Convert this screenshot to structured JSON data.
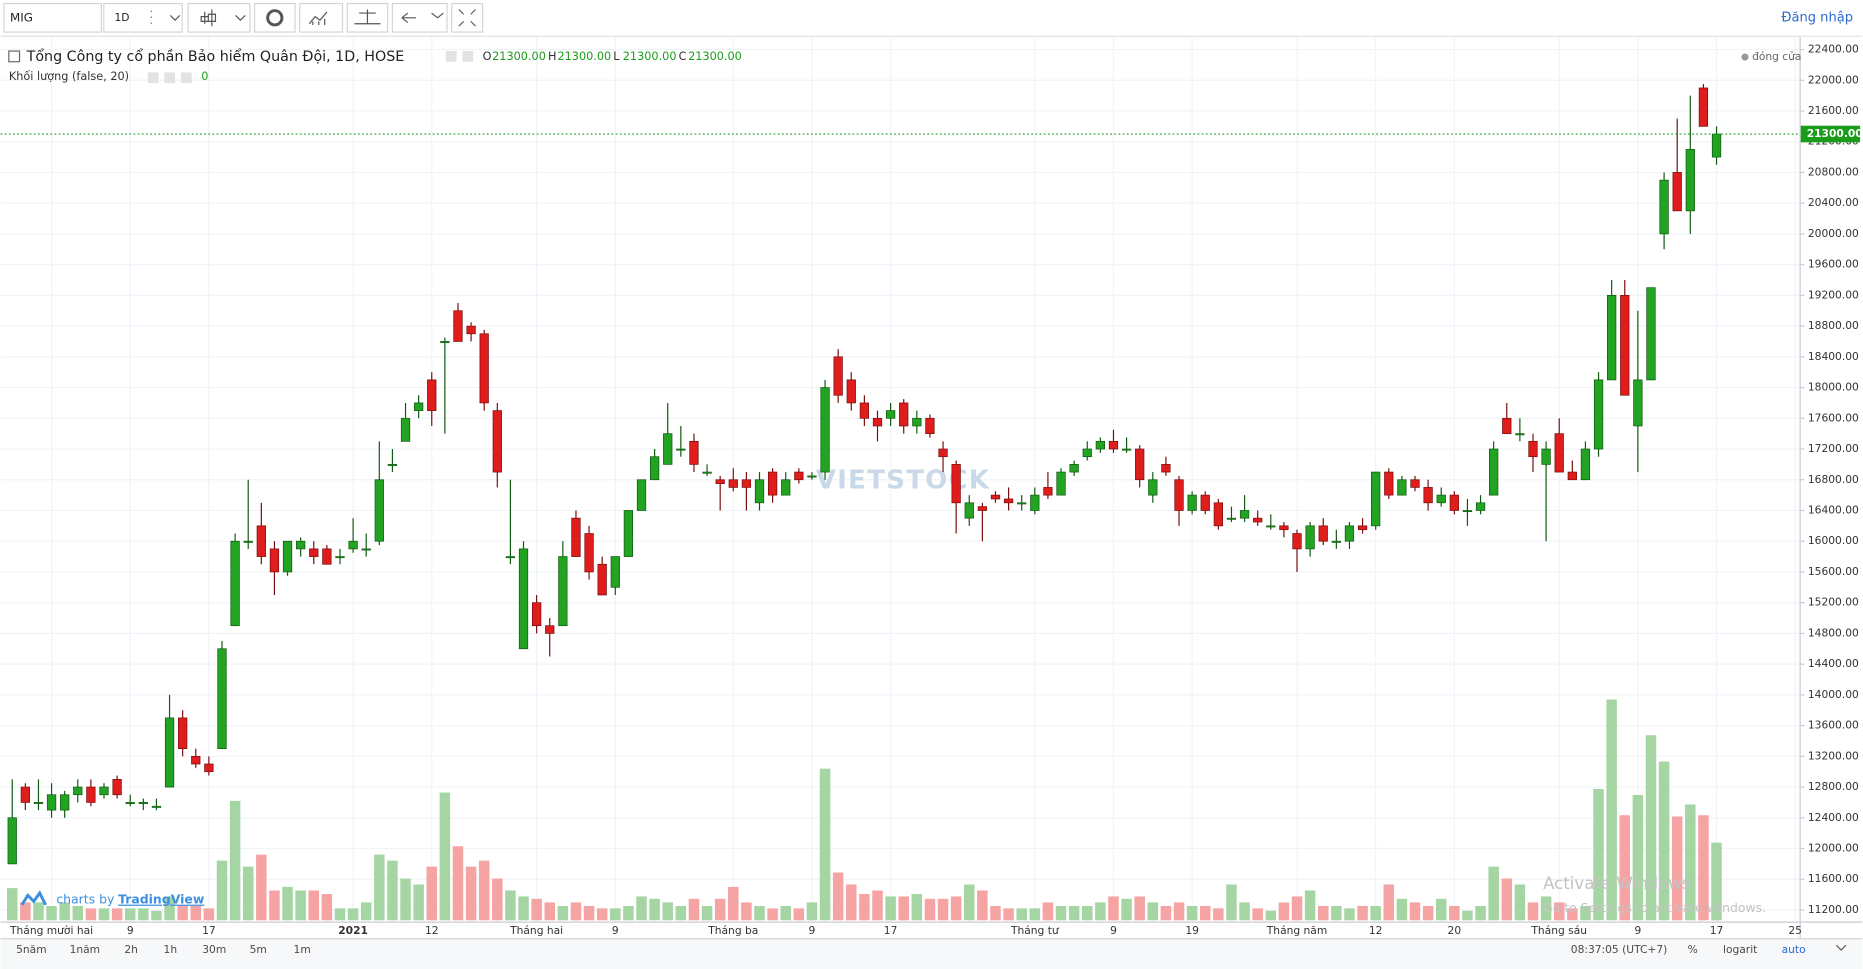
{
  "toolbar": {
    "symbol": "MIG",
    "interval": "1D",
    "login": "Đăng nhập"
  },
  "legend": {
    "title": "Tổng Công ty cổ phần Bảo hiểm Quân Đội, 1D, HOSE",
    "ohlc": [
      {
        "label": "O",
        "value": "21300.00"
      },
      {
        "label": "H",
        "value": "21300.00"
      },
      {
        "label": "L",
        "value": "21300.00"
      },
      {
        "label": "C",
        "value": "21300.00"
      }
    ],
    "volume_title": "Khối lượng (false, 20)",
    "volume_value": "0",
    "status": "đóng cửa"
  },
  "watermark": "VIETSTOCK",
  "credit": {
    "prefix": "charts by",
    "brand": "TradingView"
  },
  "bottom": {
    "ranges": [
      "5năm",
      "1năm",
      "2h",
      "1h",
      "30m",
      "5m",
      "1m"
    ],
    "time": "08:37:05 (UTC+7)",
    "percent": "%",
    "log": "logarit",
    "auto": "auto"
  },
  "os_overlay": [
    "Activate Windows",
    "Go to Settings to activate Windows."
  ],
  "chart_data": {
    "type": "candlestick",
    "categories": [
      null,
      null,
      null,
      "Tháng mười hai",
      null,
      null,
      null,
      null,
      null,
      "9",
      null,
      null,
      null,
      null,
      null,
      "17",
      null,
      null,
      null,
      null,
      null,
      null,
      null,
      null,
      null,
      null,
      "2021",
      null,
      null,
      null,
      null,
      null,
      "12",
      null,
      null,
      null,
      null,
      null,
      null,
      null,
      "Tháng hai",
      null,
      null,
      null,
      null,
      null,
      "9",
      null,
      null,
      null,
      null,
      null,
      null,
      null,
      null,
      "Tháng ba",
      null,
      null,
      null,
      null,
      null,
      "9",
      null,
      null,
      null,
      null,
      null,
      "17",
      null,
      null,
      null,
      null,
      null,
      null,
      null,
      null,
      null,
      null,
      "Tháng tư",
      null,
      null,
      null,
      null,
      null,
      "9",
      null,
      null,
      null,
      null,
      null,
      "19",
      null,
      null,
      null,
      null,
      null,
      null,
      null,
      "Tháng năm",
      null,
      null,
      null,
      null,
      null,
      "12",
      null,
      null,
      null,
      null,
      null,
      "20",
      null,
      null,
      null,
      null,
      null,
      null,
      null,
      "Tháng sáu",
      null,
      null,
      null,
      null,
      null,
      "9",
      null,
      null,
      null,
      null,
      null,
      "17",
      null,
      null,
      null,
      null,
      null,
      "25"
    ],
    "candles": [
      [
        11800,
        12900,
        11800,
        12400
      ],
      [
        12800,
        12850,
        12500,
        12600
      ],
      [
        12600,
        12900,
        12500,
        12600
      ],
      [
        12500,
        12850,
        12400,
        12700
      ],
      [
        12500,
        12750,
        12400,
        12700
      ],
      [
        12700,
        12900,
        12600,
        12800
      ],
      [
        12800,
        12900,
        12550,
        12600
      ],
      [
        12700,
        12850,
        12650,
        12800
      ],
      [
        12900,
        12950,
        12650,
        12700
      ],
      [
        12600,
        12700,
        12550,
        12600
      ],
      [
        12600,
        12650,
        12500,
        12600
      ],
      [
        12550,
        12650,
        12500,
        12550
      ],
      [
        12800,
        14000,
        12800,
        13700
      ],
      [
        13700,
        13800,
        13200,
        13300
      ],
      [
        13200,
        13300,
        13050,
        13100
      ],
      [
        13100,
        13200,
        12950,
        13000
      ],
      [
        13300,
        14700,
        13300,
        14600
      ],
      [
        14900,
        16100,
        14900,
        16000
      ],
      [
        16000,
        16800,
        15900,
        16000
      ],
      [
        16200,
        16500,
        15700,
        15800
      ],
      [
        15900,
        16000,
        15300,
        15600
      ],
      [
        15600,
        16000,
        15550,
        16000
      ],
      [
        15900,
        16050,
        15800,
        16000
      ],
      [
        15900,
        16000,
        15700,
        15800
      ],
      [
        15900,
        15950,
        15700,
        15700
      ],
      [
        15800,
        15900,
        15700,
        15800
      ],
      [
        15900,
        16300,
        15850,
        16000
      ],
      [
        15900,
        16100,
        15800,
        15900
      ],
      [
        16000,
        17300,
        15950,
        16800
      ],
      [
        17000,
        17200,
        16900,
        17000
      ],
      [
        17300,
        17800,
        17300,
        17600
      ],
      [
        17700,
        17900,
        17600,
        17800
      ],
      [
        18100,
        18200,
        17500,
        17700
      ],
      [
        18600,
        18650,
        17400,
        18600
      ],
      [
        19000,
        19100,
        18600,
        18600
      ],
      [
        18800,
        18850,
        18600,
        18700
      ],
      [
        18700,
        18750,
        17700,
        17800
      ],
      [
        17700,
        17800,
        16700,
        16900
      ],
      [
        15800,
        16800,
        15700,
        15800
      ],
      [
        14600,
        16000,
        14600,
        15900
      ],
      [
        15200,
        15300,
        14800,
        14900
      ],
      [
        14900,
        15000,
        14500,
        14800
      ],
      [
        14900,
        16000,
        14900,
        15800
      ],
      [
        16300,
        16400,
        15800,
        15800
      ],
      [
        16100,
        16200,
        15500,
        15600
      ],
      [
        15700,
        15800,
        15300,
        15300
      ],
      [
        15400,
        15800,
        15300,
        15800
      ],
      [
        15800,
        16400,
        15800,
        16400
      ],
      [
        16400,
        16800,
        16400,
        16800
      ],
      [
        16800,
        17200,
        16800,
        17100
      ],
      [
        17000,
        17800,
        17000,
        17400
      ],
      [
        17200,
        17500,
        17100,
        17200
      ],
      [
        17300,
        17400,
        16900,
        17000
      ],
      [
        16900,
        17000,
        16850,
        16900
      ],
      [
        16800,
        16850,
        16400,
        16750
      ],
      [
        16800,
        16950,
        16650,
        16700
      ],
      [
        16800,
        16900,
        16400,
        16700
      ],
      [
        16500,
        16900,
        16400,
        16800
      ],
      [
        16900,
        16950,
        16500,
        16600
      ],
      [
        16600,
        16900,
        16600,
        16800
      ],
      [
        16900,
        16950,
        16750,
        16800
      ],
      [
        16850,
        16900,
        16800,
        16850
      ],
      [
        16900,
        18100,
        16800,
        18000
      ],
      [
        18400,
        18500,
        17800,
        17900
      ],
      [
        18100,
        18200,
        17700,
        17800
      ],
      [
        17800,
        17900,
        17500,
        17600
      ],
      [
        17600,
        17700,
        17300,
        17500
      ],
      [
        17600,
        17800,
        17500,
        17700
      ],
      [
        17800,
        17850,
        17400,
        17500
      ],
      [
        17500,
        17700,
        17400,
        17600
      ],
      [
        17600,
        17650,
        17350,
        17400
      ],
      [
        17200,
        17300,
        16900,
        17100
      ],
      [
        17000,
        17050,
        16100,
        16500
      ],
      [
        16300,
        16600,
        16200,
        16500
      ],
      [
        16450,
        16500,
        16000,
        16400
      ],
      [
        16600,
        16650,
        16500,
        16550
      ],
      [
        16550,
        16700,
        16400,
        16500
      ],
      [
        16500,
        16600,
        16400,
        16500
      ],
      [
        16400,
        16700,
        16350,
        16600
      ],
      [
        16700,
        16900,
        16550,
        16600
      ],
      [
        16600,
        16950,
        16600,
        16900
      ],
      [
        16900,
        17050,
        16850,
        17000
      ],
      [
        17100,
        17300,
        17050,
        17200
      ],
      [
        17200,
        17350,
        17150,
        17300
      ],
      [
        17300,
        17450,
        17150,
        17200
      ],
      [
        17200,
        17350,
        17150,
        17200
      ],
      [
        17200,
        17250,
        16700,
        16800
      ],
      [
        16600,
        16900,
        16500,
        16800
      ],
      [
        17000,
        17100,
        16850,
        16900
      ],
      [
        16800,
        16850,
        16200,
        16400
      ],
      [
        16400,
        16650,
        16350,
        16600
      ],
      [
        16600,
        16650,
        16350,
        16400
      ],
      [
        16500,
        16550,
        16150,
        16200
      ],
      [
        16300,
        16450,
        16250,
        16300
      ],
      [
        16300,
        16600,
        16250,
        16400
      ],
      [
        16300,
        16400,
        16200,
        16250
      ],
      [
        16200,
        16350,
        16150,
        16200
      ],
      [
        16200,
        16250,
        16050,
        16150
      ],
      [
        16100,
        16150,
        15600,
        15900
      ],
      [
        15900,
        16250,
        15800,
        16200
      ],
      [
        16200,
        16300,
        15950,
        16000
      ],
      [
        16000,
        16150,
        15900,
        16000
      ],
      [
        16000,
        16250,
        15900,
        16200
      ],
      [
        16200,
        16300,
        16100,
        16150
      ],
      [
        16200,
        16900,
        16150,
        16900
      ],
      [
        16900,
        16950,
        16550,
        16600
      ],
      [
        16600,
        16850,
        16600,
        16800
      ],
      [
        16800,
        16850,
        16650,
        16700
      ],
      [
        16700,
        16800,
        16400,
        16500
      ],
      [
        16500,
        16700,
        16450,
        16600
      ],
      [
        16600,
        16650,
        16350,
        16400
      ],
      [
        16400,
        16550,
        16200,
        16400
      ],
      [
        16400,
        16600,
        16350,
        16500
      ],
      [
        16600,
        17300,
        16600,
        17200
      ],
      [
        17600,
        17800,
        17400,
        17400
      ],
      [
        17400,
        17600,
        17300,
        17400
      ],
      [
        17300,
        17400,
        16900,
        17100
      ],
      [
        17000,
        17300,
        16000,
        17200
      ],
      [
        17400,
        17600,
        16900,
        16900
      ],
      [
        16900,
        17050,
        16800,
        16800
      ],
      [
        16800,
        17300,
        16800,
        17200
      ],
      [
        17200,
        18200,
        17100,
        18100
      ],
      [
        18100,
        19400,
        18100,
        19200
      ],
      [
        19200,
        19400,
        17900,
        17900
      ],
      [
        17500,
        19000,
        16900,
        18100
      ],
      [
        18100,
        19300,
        18100,
        19300
      ],
      [
        20000,
        20800,
        19800,
        20700
      ],
      [
        20800,
        21500,
        20300,
        20300
      ],
      [
        20300,
        21800,
        20000,
        21100
      ],
      [
        21900,
        21950,
        21400,
        21400
      ],
      [
        21000,
        21400,
        20900,
        21300
      ],
      null,
      null,
      null,
      null,
      null,
      null
    ],
    "volume": [
      270000,
      150000,
      150000,
      120000,
      150000,
      120000,
      100000,
      100000,
      100000,
      100000,
      100000,
      80000,
      200000,
      120000,
      120000,
      100000,
      500000,
      1000000,
      450000,
      550000,
      250000,
      280000,
      250000,
      250000,
      220000,
      100000,
      100000,
      150000,
      550000,
      500000,
      350000,
      300000,
      450000,
      1070000,
      620000,
      450000,
      500000,
      350000,
      250000,
      200000,
      180000,
      150000,
      120000,
      150000,
      120000,
      100000,
      100000,
      120000,
      200000,
      180000,
      150000,
      120000,
      180000,
      120000,
      180000,
      280000,
      150000,
      120000,
      100000,
      120000,
      100000,
      150000,
      1270000,
      400000,
      300000,
      220000,
      250000,
      200000,
      200000,
      220000,
      180000,
      180000,
      200000,
      300000,
      250000,
      120000,
      100000,
      100000,
      100000,
      150000,
      120000,
      120000,
      120000,
      150000,
      200000,
      180000,
      200000,
      150000,
      120000,
      150000,
      120000,
      120000,
      100000,
      300000,
      150000,
      100000,
      80000,
      150000,
      200000,
      250000,
      120000,
      120000,
      100000,
      120000,
      120000,
      300000,
      180000,
      150000,
      120000,
      180000,
      120000,
      80000,
      120000,
      450000,
      350000,
      300000,
      150000,
      200000,
      150000,
      100000,
      120000,
      1100000,
      1850000,
      880000,
      1050000,
      1550000,
      1330000,
      870000,
      970000,
      880000,
      650000,
      null,
      null,
      null,
      null,
      null,
      null
    ],
    "up_color": "#22a322",
    "down_color": "#e01d1d",
    "volume_up_color": "#a6d5a4",
    "volume_down_color": "#f5a3a3",
    "last_price": {
      "value": 21300,
      "label": "21300.00"
    },
    "ylim": [
      11050,
      22550
    ],
    "yticks": [
      {
        "value": 11200,
        "label": "11200.00"
      },
      {
        "value": 11600,
        "label": "11600.00"
      },
      {
        "value": 12000,
        "label": "12000.00"
      },
      {
        "value": 12400,
        "label": "12400.00"
      },
      {
        "value": 12800,
        "label": "12800.00"
      },
      {
        "value": 13200,
        "label": "13200.00"
      },
      {
        "value": 13600,
        "label": "13600.00"
      },
      {
        "value": 14000,
        "label": "14000.00"
      },
      {
        "value": 14400,
        "label": "14400.00"
      },
      {
        "value": 14800,
        "label": "14800.00"
      },
      {
        "value": 15200,
        "label": "15200.00"
      },
      {
        "value": 15600,
        "label": "15600.00"
      },
      {
        "value": 16000,
        "label": "16000.00"
      },
      {
        "value": 16400,
        "label": "16400.00"
      },
      {
        "value": 16800,
        "label": "16800.00"
      },
      {
        "value": 17200,
        "label": "17200.00"
      },
      {
        "value": 17600,
        "label": "17600.00"
      },
      {
        "value": 18000,
        "label": "18000.00"
      },
      {
        "value": 18400,
        "label": "18400.00"
      },
      {
        "value": 18800,
        "label": "18800.00"
      },
      {
        "value": 19200,
        "label": "19200.00"
      },
      {
        "value": 19600,
        "label": "19600.00"
      },
      {
        "value": 20000,
        "label": "20000.00"
      },
      {
        "value": 20400,
        "label": "20400.00"
      },
      {
        "value": 20800,
        "label": "20800.00"
      },
      {
        "value": 21200,
        "label": "21200.00"
      },
      {
        "value": 21600,
        "label": "21600.00"
      },
      {
        "value": 22000,
        "label": "22000.00"
      },
      {
        "value": 22400,
        "label": "22400.00"
      }
    ],
    "grid": true
  }
}
